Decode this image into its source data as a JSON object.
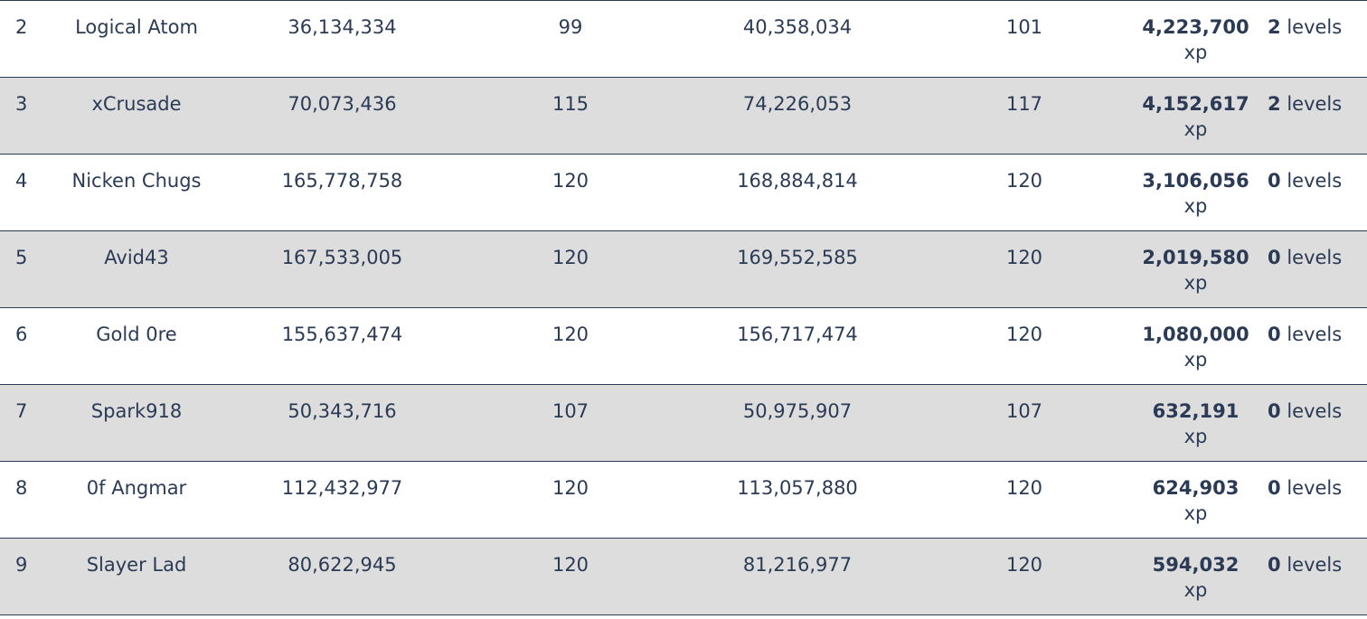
{
  "rows": [
    {
      "rank": "2",
      "name": "Logical Atom",
      "start_xp": "36,134,334",
      "start_level": "99",
      "end_xp": "40,358,034",
      "end_level": "101",
      "gain": "4,223,700",
      "gain_unit": "xp",
      "level_gain": "2",
      "level_unit": "levels"
    },
    {
      "rank": "3",
      "name": "xCrusade",
      "start_xp": "70,073,436",
      "start_level": "115",
      "end_xp": "74,226,053",
      "end_level": "117",
      "gain": "4,152,617",
      "gain_unit": "xp",
      "level_gain": "2",
      "level_unit": "levels"
    },
    {
      "rank": "4",
      "name": "Nicken Chugs",
      "start_xp": "165,778,758",
      "start_level": "120",
      "end_xp": "168,884,814",
      "end_level": "120",
      "gain": "3,106,056",
      "gain_unit": "xp",
      "level_gain": "0",
      "level_unit": "levels"
    },
    {
      "rank": "5",
      "name": "Avid43",
      "start_xp": "167,533,005",
      "start_level": "120",
      "end_xp": "169,552,585",
      "end_level": "120",
      "gain": "2,019,580",
      "gain_unit": "xp",
      "level_gain": "0",
      "level_unit": "levels"
    },
    {
      "rank": "6",
      "name": "Gold 0re",
      "start_xp": "155,637,474",
      "start_level": "120",
      "end_xp": "156,717,474",
      "end_level": "120",
      "gain": "1,080,000",
      "gain_unit": "xp",
      "level_gain": "0",
      "level_unit": "levels"
    },
    {
      "rank": "7",
      "name": "Spark918",
      "start_xp": "50,343,716",
      "start_level": "107",
      "end_xp": "50,975,907",
      "end_level": "107",
      "gain": "632,191",
      "gain_unit": "xp",
      "level_gain": "0",
      "level_unit": "levels"
    },
    {
      "rank": "8",
      "name": "0f Angmar",
      "start_xp": "112,432,977",
      "start_level": "120",
      "end_xp": "113,057,880",
      "end_level": "120",
      "gain": "624,903",
      "gain_unit": "xp",
      "level_gain": "0",
      "level_unit": "levels"
    },
    {
      "rank": "9",
      "name": "Slayer Lad",
      "start_xp": "80,622,945",
      "start_level": "120",
      "end_xp": "81,216,977",
      "end_level": "120",
      "gain": "594,032",
      "gain_unit": "xp",
      "level_gain": "0",
      "level_unit": "levels"
    }
  ],
  "colors": {
    "text": "#2b3a55",
    "row_alt_background": "#dddddd",
    "row_background": "#ffffff",
    "border": "#2b3a55"
  }
}
